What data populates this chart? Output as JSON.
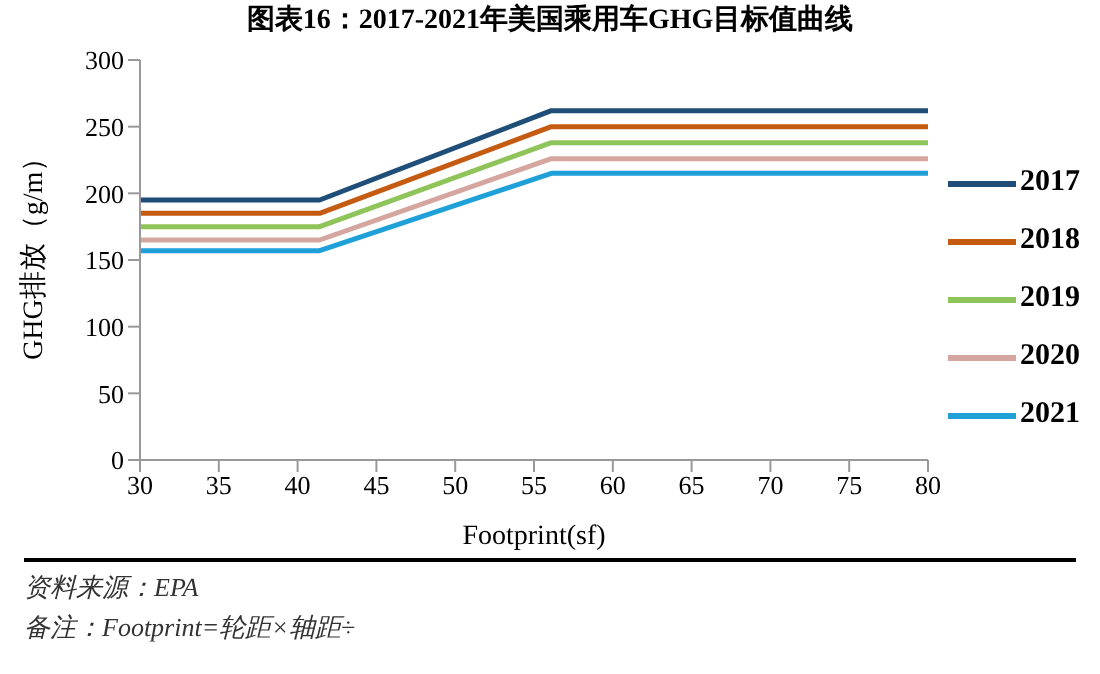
{
  "chart_data": {
    "type": "line",
    "title": "图表16：2017-2021年美国乘用车GHG目标值曲线",
    "xlabel": "Footprint(sf)",
    "ylabel": "GHG排放（g/m）",
    "x": [
      30,
      41.4,
      56.1,
      80
    ],
    "series": [
      {
        "name": "2017",
        "color": "#1f4e79",
        "values": [
          195,
          195,
          262,
          262
        ]
      },
      {
        "name": "2018",
        "color": "#c55a11",
        "values": [
          185,
          185,
          250,
          250
        ]
      },
      {
        "name": "2019",
        "color": "#8fc45a",
        "values": [
          175,
          175,
          238,
          238
        ]
      },
      {
        "name": "2020",
        "color": "#d5a6a0",
        "values": [
          165,
          165,
          226,
          226
        ]
      },
      {
        "name": "2021",
        "color": "#1fa0d8",
        "values": [
          157,
          157,
          215,
          215
        ]
      }
    ],
    "xlim": [
      30,
      80
    ],
    "xticks": [
      30,
      35,
      40,
      45,
      50,
      55,
      60,
      65,
      70,
      75,
      80
    ],
    "ylim": [
      0,
      300
    ],
    "yticks": [
      0,
      50,
      100,
      150,
      200,
      250,
      300
    ],
    "grid": false,
    "legend": "right",
    "marker": "none",
    "line_style": "solid",
    "annotations": [
      "资料来源：EPA",
      "备注：Footprint=轮距×轴距÷"
    ]
  }
}
